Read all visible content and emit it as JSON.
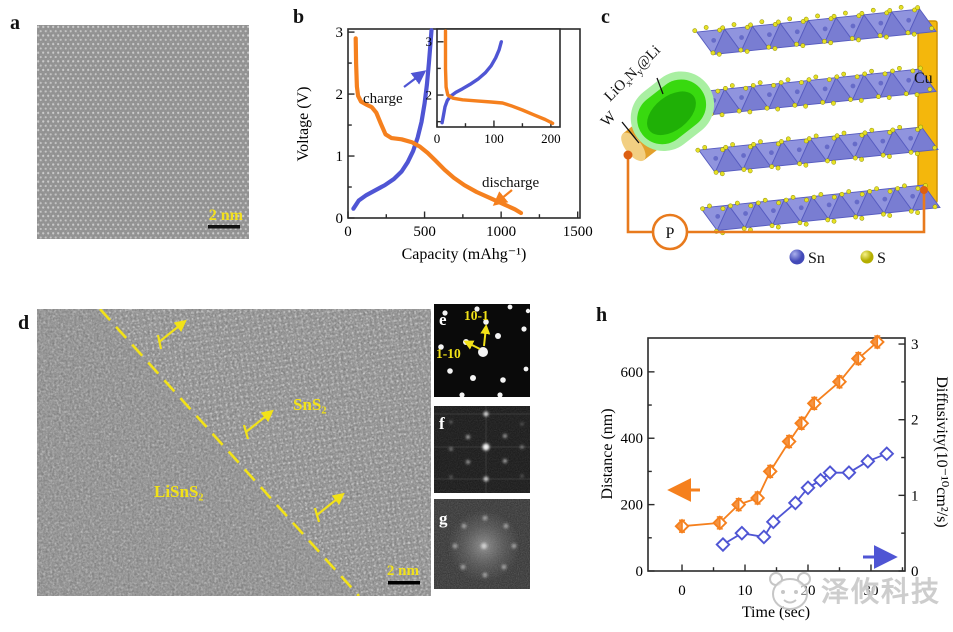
{
  "accent_colors": {
    "orange": "#f5801e",
    "blue": "#4f55d4",
    "yellow": "#f2e218"
  },
  "panels": {
    "a": {
      "label": "a",
      "scale_bar": "2 nm"
    },
    "b": {
      "label": "b",
      "ylabel": "Voltage (V)",
      "xlabel": "Capacity (mAhg⁻¹)",
      "charge_label": "charge",
      "discharge_label": "discharge"
    },
    "c": {
      "label": "c",
      "cu_label": "Cu",
      "p_label": "P",
      "w_label": "W",
      "probe_label_parts": [
        [
          "LiO",
          "n"
        ],
        [
          "x",
          "s"
        ],
        [
          "N",
          "n"
        ],
        [
          "y",
          "s"
        ],
        [
          "@Li",
          "n"
        ]
      ],
      "legend": [
        {
          "label": "Sn",
          "color": "#6b6fd0"
        },
        {
          "label": "S",
          "color": "#e2dc20"
        }
      ]
    },
    "d": {
      "label": "d",
      "region1": "SnS₂",
      "region2": "LiSnS₂",
      "scale_bar": "2 nm"
    },
    "e": {
      "label": "e",
      "spot1": "10-1",
      "spot2": "1-10"
    },
    "f": {
      "label": "f"
    },
    "g": {
      "label": "g"
    },
    "h": {
      "label": "h",
      "ylabel_left": "Distance (nm)",
      "ylabel_right": "Diffusivity(10⁻¹⁰cm²/s)",
      "xlabel": "Time (sec)"
    }
  },
  "watermark": {
    "text": "泽攸科技"
  },
  "chart_data": [
    {
      "id": "b-main",
      "type": "line",
      "title": "",
      "xlabel": "Capacity (mAhg⁻¹)",
      "ylabel": "Voltage (V)",
      "xlim": [
        0,
        1515
      ],
      "ylim": [
        0,
        3.05
      ],
      "xticks": [
        0,
        500,
        1000,
        1500
      ],
      "yticks": [
        0,
        1,
        2,
        3
      ],
      "xminor": [
        250,
        750,
        1250
      ],
      "yminor": [
        0.5,
        1.5,
        2.5
      ],
      "series": [
        {
          "name": "charge",
          "color": "blue",
          "points": [
            [
              35,
              0.15
            ],
            [
              70,
              0.28
            ],
            [
              120,
              0.37
            ],
            [
              180,
              0.45
            ],
            [
              240,
              0.53
            ],
            [
              300,
              0.63
            ],
            [
              350,
              0.75
            ],
            [
              390,
              0.9
            ],
            [
              425,
              1.08
            ],
            [
              455,
              1.3
            ],
            [
              480,
              1.55
            ],
            [
              500,
              1.85
            ],
            [
              515,
              2.15
            ],
            [
              528,
              2.5
            ],
            [
              538,
              2.8
            ],
            [
              545,
              3.03
            ]
          ]
        },
        {
          "name": "discharge",
          "color": "orange",
          "points": [
            [
              50,
              2.9
            ],
            [
              53,
              2.5
            ],
            [
              58,
              2.12
            ],
            [
              66,
              1.97
            ],
            [
              85,
              1.88
            ],
            [
              120,
              1.83
            ],
            [
              155,
              1.79
            ],
            [
              185,
              1.7
            ],
            [
              215,
              1.52
            ],
            [
              245,
              1.35
            ],
            [
              285,
              1.29
            ],
            [
              350,
              1.27
            ],
            [
              420,
              1.22
            ],
            [
              470,
              1.15
            ],
            [
              520,
              1.05
            ],
            [
              570,
              0.93
            ],
            [
              630,
              0.78
            ],
            [
              690,
              0.65
            ],
            [
              760,
              0.53
            ],
            [
              840,
              0.42
            ],
            [
              930,
              0.32
            ],
            [
              1020,
              0.22
            ],
            [
              1090,
              0.14
            ],
            [
              1130,
              0.08
            ]
          ]
        }
      ]
    },
    {
      "id": "b-inset",
      "type": "line",
      "xlim": [
        0,
        216
      ],
      "ylim": [
        1.4,
        3.24
      ],
      "xticks": [
        0,
        100,
        200
      ],
      "yticks": [
        2,
        3
      ],
      "xminor": [
        50,
        150
      ],
      "yminor": [
        1.5,
        2.5
      ],
      "series": [
        {
          "name": "charge",
          "color": "blue",
          "points": [
            [
              9,
              1.48
            ],
            [
              11,
              1.6
            ],
            [
              14,
              1.78
            ],
            [
              18,
              1.9
            ],
            [
              24,
              1.98
            ],
            [
              33,
              2.05
            ],
            [
              45,
              2.12
            ],
            [
              58,
              2.2
            ],
            [
              72,
              2.3
            ],
            [
              85,
              2.42
            ],
            [
              95,
              2.55
            ],
            [
              103,
              2.7
            ],
            [
              109,
              2.85
            ],
            [
              113,
              3.0
            ]
          ]
        },
        {
          "name": "discharge",
          "color": "orange",
          "points": [
            [
              15,
              3.2
            ],
            [
              15,
              2.5
            ],
            [
              16,
              2.15
            ],
            [
              19,
              2.0
            ],
            [
              28,
              1.94
            ],
            [
              45,
              1.91
            ],
            [
              70,
              1.89
            ],
            [
              95,
              1.87
            ],
            [
              115,
              1.85
            ],
            [
              130,
              1.8
            ],
            [
              150,
              1.72
            ],
            [
              170,
              1.63
            ],
            [
              190,
              1.54
            ],
            [
              203,
              1.47
            ]
          ]
        }
      ]
    },
    {
      "id": "h",
      "type": "scatter-line",
      "xlabel": "Time (sec)",
      "ylabel_left": "Distance (nm)",
      "ylabel_right": "Diffusivity(10⁻¹⁰cm²/s)",
      "xlim": [
        -5.4,
        35.4
      ],
      "ylim_left": [
        0,
        702
      ],
      "ylim_right": [
        0,
        3.08
      ],
      "xticks": [
        0,
        10,
        20,
        30
      ],
      "yticks_left": [
        0,
        200,
        400,
        600
      ],
      "yticks_right": [
        0,
        1,
        2,
        3
      ],
      "xminor": [
        5,
        15,
        25,
        35
      ],
      "yminor_left": [
        100,
        300,
        500
      ],
      "yminor_right": [
        0.5,
        1.5,
        2.5
      ],
      "series": [
        {
          "name": "distance",
          "axis": "left",
          "color": "orange",
          "marker": "diamond-split",
          "error": 18,
          "points": [
            [
              0,
              135
            ],
            [
              6,
              145
            ],
            [
              9,
              200
            ],
            [
              12,
              220
            ],
            [
              14,
              300
            ],
            [
              17,
              390
            ],
            [
              19,
              445
            ],
            [
              21,
              505
            ],
            [
              25,
              570
            ],
            [
              28,
              640
            ],
            [
              31,
              690
            ]
          ]
        },
        {
          "name": "diffusivity",
          "axis": "right",
          "color": "blue",
          "marker": "diamond-open",
          "points": [
            [
              6.5,
              0.35
            ],
            [
              9.5,
              0.5
            ],
            [
              13,
              0.45
            ],
            [
              14.5,
              0.65
            ],
            [
              18,
              0.9
            ],
            [
              20,
              1.1
            ],
            [
              22,
              1.2
            ],
            [
              23.5,
              1.3
            ],
            [
              26.5,
              1.3
            ],
            [
              29.5,
              1.45
            ],
            [
              32.5,
              1.55
            ]
          ]
        }
      ]
    }
  ]
}
